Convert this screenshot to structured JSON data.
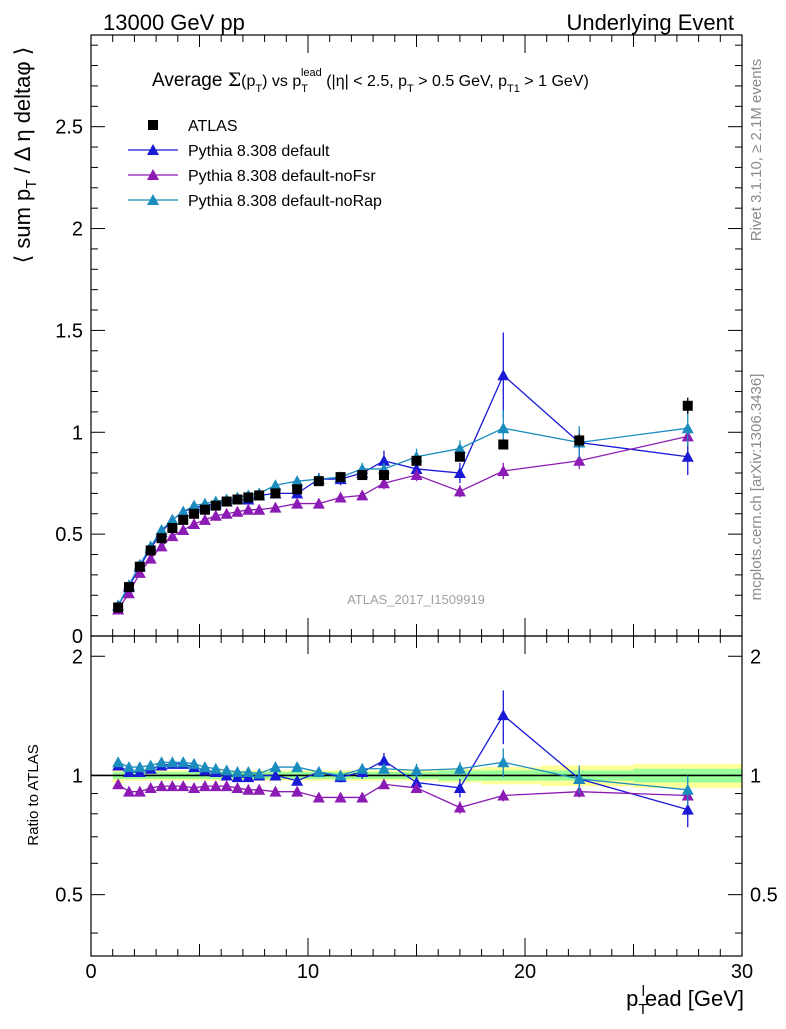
{
  "header": {
    "left": "13000 GeV pp",
    "right": "Underlying Event"
  },
  "side": {
    "rivet": "Rivet 3.1.10, ≥ 2.1M events",
    "mcplots": "mcplots.cern.ch [arXiv:1306.3436]"
  },
  "chart_data": {
    "type": "scatter",
    "title": "Average Σ(pT) vs pT lead (|η| < 2.5, pT > 0.5 GeV, pT1 > 1 GeV)",
    "watermark": "ATLAS_2017_I1509919",
    "xlabel": "p_T^lead [GeV]",
    "ylabel": "⟨ sum p_T / Δη deltaφ ⟩",
    "ratio_ylabel": "Ratio to ATLAS",
    "xlim": [
      0,
      30
    ],
    "ylim": [
      0,
      2.95
    ],
    "ratio_ylim": [
      0.35,
      2.25
    ],
    "xticks": [
      "0",
      "10",
      "20",
      "30"
    ],
    "yticks": [
      "0",
      "0.5",
      "1",
      "1.5",
      "2",
      "2.5"
    ],
    "ratio_yticks": [
      "0.5",
      "1",
      "2"
    ],
    "legend_position": "top-left",
    "x": [
      1.25,
      1.75,
      2.25,
      2.75,
      3.25,
      3.75,
      4.25,
      4.75,
      5.25,
      5.75,
      6.25,
      6.75,
      7.25,
      7.75,
      8.5,
      9.5,
      10.5,
      11.5,
      12.5,
      13.5,
      15,
      17,
      19,
      22.5,
      27.5
    ],
    "series": [
      {
        "name": "ATLAS",
        "marker": "square",
        "color": "#000000",
        "values": [
          0.14,
          0.24,
          0.34,
          0.42,
          0.48,
          0.53,
          0.57,
          0.6,
          0.62,
          0.64,
          0.66,
          0.67,
          0.68,
          0.69,
          0.7,
          0.72,
          0.76,
          0.78,
          0.79,
          0.79,
          0.86,
          0.88,
          0.94,
          0.96,
          1.13
        ],
        "errors": [
          0.01,
          0.01,
          0.01,
          0.01,
          0.01,
          0.01,
          0.01,
          0.01,
          0.01,
          0.01,
          0.01,
          0.01,
          0.01,
          0.01,
          0.01,
          0.01,
          0.01,
          0.01,
          0.01,
          0.02,
          0.02,
          0.02,
          0.02,
          0.03,
          0.04
        ],
        "ratio_band_stat": [
          0.02,
          0.02,
          0.02,
          0.02,
          0.02,
          0.02,
          0.02,
          0.02,
          0.02,
          0.02,
          0.02,
          0.02,
          0.02,
          0.02,
          0.02,
          0.02,
          0.02,
          0.02,
          0.02,
          0.02,
          0.02,
          0.03,
          0.03,
          0.03,
          0.04
        ],
        "ratio_band_total": [
          0.04,
          0.03,
          0.03,
          0.03,
          0.03,
          0.03,
          0.03,
          0.03,
          0.03,
          0.03,
          0.03,
          0.03,
          0.03,
          0.03,
          0.03,
          0.03,
          0.03,
          0.03,
          0.03,
          0.03,
          0.03,
          0.04,
          0.05,
          0.06,
          0.07
        ]
      },
      {
        "name": "Pythia 8.308 default",
        "marker": "triangle",
        "color": "#1a1ad6",
        "values": [
          0.15,
          0.24,
          0.34,
          0.43,
          0.51,
          0.57,
          0.61,
          0.63,
          0.64,
          0.65,
          0.66,
          0.67,
          0.67,
          0.69,
          0.7,
          0.7,
          0.77,
          0.77,
          0.8,
          0.86,
          0.82,
          0.8,
          1.28,
          0.95,
          0.88
        ],
        "errors": [
          0.01,
          0.01,
          0.01,
          0.01,
          0.01,
          0.01,
          0.01,
          0.01,
          0.01,
          0.01,
          0.01,
          0.01,
          0.01,
          0.01,
          0.01,
          0.02,
          0.03,
          0.03,
          0.03,
          0.05,
          0.05,
          0.05,
          0.21,
          0.06,
          0.09
        ],
        "ratio": [
          1.06,
          1.02,
          1.02,
          1.04,
          1.06,
          1.07,
          1.07,
          1.05,
          1.03,
          1.02,
          1.0,
          0.99,
          0.99,
          1.0,
          1.0,
          0.97,
          1.02,
          0.99,
          1.02,
          1.09,
          0.96,
          0.93,
          1.42,
          0.98,
          0.82
        ],
        "ratio_errors": [
          0.01,
          0.01,
          0.01,
          0.01,
          0.01,
          0.01,
          0.01,
          0.01,
          0.01,
          0.01,
          0.01,
          0.01,
          0.01,
          0.01,
          0.01,
          0.02,
          0.03,
          0.03,
          0.04,
          0.05,
          0.05,
          0.05,
          0.22,
          0.06,
          0.08
        ]
      },
      {
        "name": "Pythia 8.308 default-noFsr",
        "marker": "triangle",
        "color": "#8c1ab4",
        "values": [
          0.13,
          0.21,
          0.31,
          0.38,
          0.44,
          0.49,
          0.52,
          0.55,
          0.57,
          0.59,
          0.6,
          0.61,
          0.62,
          0.62,
          0.63,
          0.65,
          0.65,
          0.68,
          0.69,
          0.75,
          0.79,
          0.71,
          0.81,
          0.86,
          0.98
        ],
        "errors": [
          0.01,
          0.01,
          0.01,
          0.01,
          0.01,
          0.01,
          0.01,
          0.01,
          0.01,
          0.01,
          0.01,
          0.01,
          0.01,
          0.01,
          0.01,
          0.01,
          0.02,
          0.02,
          0.02,
          0.03,
          0.03,
          0.03,
          0.04,
          0.04,
          0.05
        ],
        "ratio": [
          0.95,
          0.91,
          0.91,
          0.93,
          0.94,
          0.94,
          0.94,
          0.93,
          0.94,
          0.94,
          0.94,
          0.93,
          0.92,
          0.92,
          0.91,
          0.91,
          0.88,
          0.88,
          0.88,
          0.95,
          0.93,
          0.83,
          0.89,
          0.91,
          0.89
        ],
        "ratio_errors": [
          0.01,
          0.01,
          0.01,
          0.01,
          0.01,
          0.01,
          0.01,
          0.01,
          0.01,
          0.01,
          0.01,
          0.01,
          0.01,
          0.01,
          0.01,
          0.01,
          0.02,
          0.02,
          0.02,
          0.02,
          0.02,
          0.03,
          0.03,
          0.03,
          0.04
        ]
      },
      {
        "name": "Pythia 8.308 default-noRap",
        "marker": "triangle",
        "color": "#1a8cbe",
        "values": [
          0.15,
          0.25,
          0.35,
          0.44,
          0.52,
          0.57,
          0.61,
          0.64,
          0.65,
          0.66,
          0.67,
          0.68,
          0.69,
          0.7,
          0.74,
          0.76,
          0.77,
          0.78,
          0.82,
          0.82,
          0.88,
          0.92,
          1.02,
          0.95,
          1.02
        ],
        "errors": [
          0.01,
          0.01,
          0.01,
          0.01,
          0.01,
          0.01,
          0.01,
          0.01,
          0.01,
          0.01,
          0.01,
          0.01,
          0.01,
          0.01,
          0.01,
          0.02,
          0.02,
          0.02,
          0.03,
          0.03,
          0.04,
          0.04,
          0.09,
          0.08,
          0.09
        ],
        "ratio": [
          1.08,
          1.05,
          1.05,
          1.06,
          1.08,
          1.08,
          1.08,
          1.07,
          1.05,
          1.04,
          1.03,
          1.02,
          1.02,
          1.01,
          1.05,
          1.05,
          1.02,
          1.0,
          1.04,
          1.04,
          1.03,
          1.04,
          1.08,
          0.98,
          0.92
        ],
        "ratio_errors": [
          0.01,
          0.01,
          0.01,
          0.01,
          0.01,
          0.01,
          0.01,
          0.01,
          0.01,
          0.01,
          0.01,
          0.01,
          0.01,
          0.01,
          0.01,
          0.02,
          0.02,
          0.02,
          0.03,
          0.03,
          0.04,
          0.04,
          0.09,
          0.08,
          0.08
        ]
      }
    ]
  }
}
